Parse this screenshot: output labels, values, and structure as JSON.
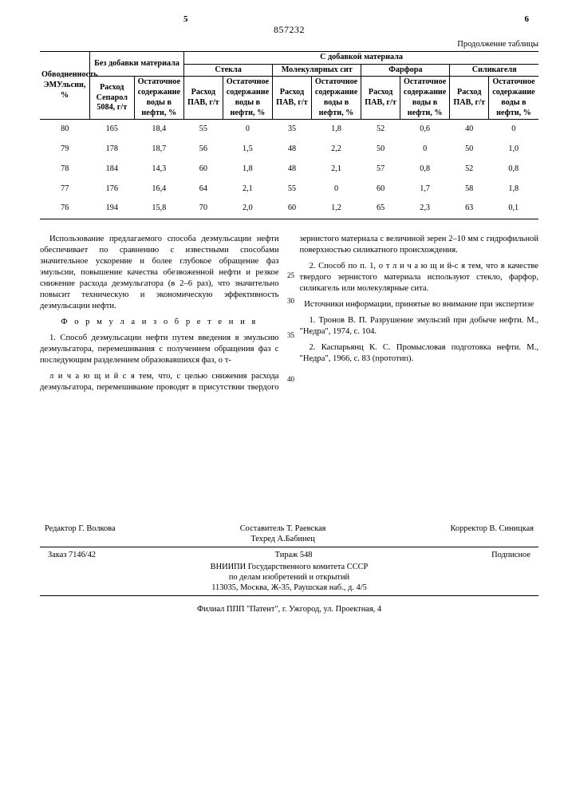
{
  "page": {
    "left_num": "5",
    "right_num": "6",
    "patent_no": "857232",
    "cont_label": "Продолжение таблицы"
  },
  "table": {
    "head": {
      "col_emul": "Обводненность ЭМУльсии, %",
      "col_noadd": "Без добавки материала",
      "col_withadd": "С добавкой материала",
      "sub_rashod_sep": "Расход Сепарол 5084, г/т",
      "sub_ost": "Остаточное содержание воды в нефти, %",
      "mat_glass": "Стекла",
      "mat_sieve": "Молекулярных сит",
      "mat_porcelain": "Фарфора",
      "mat_silica": "Силикагеля",
      "sub_pav": "Расход ПАВ, г/т"
    },
    "rows": [
      {
        "e": "80",
        "s": "165",
        "so": "18,4",
        "g": "55",
        "go": "0",
        "m": "35",
        "mo": "1,8",
        "f": "52",
        "fo": "0,6",
        "si": "40",
        "sio": "0"
      },
      {
        "e": "79",
        "s": "178",
        "so": "18,7",
        "g": "56",
        "go": "1,5",
        "m": "48",
        "mo": "2,2",
        "f": "50",
        "fo": "0",
        "si": "50",
        "sio": "1,0"
      },
      {
        "e": "78",
        "s": "184",
        "so": "14,3",
        "g": "60",
        "go": "1,8",
        "m": "48",
        "mo": "2,1",
        "f": "57",
        "fo": "0,8",
        "si": "52",
        "sio": "0,8"
      },
      {
        "e": "77",
        "s": "176",
        "so": "16,4",
        "g": "64",
        "go": "2,1",
        "m": "55",
        "mo": "0",
        "f": "60",
        "fo": "1,7",
        "si": "58",
        "sio": "1,8"
      },
      {
        "e": "76",
        "s": "194",
        "so": "15,8",
        "g": "70",
        "go": "2,0",
        "m": "60",
        "mo": "1,2",
        "f": "65",
        "fo": "2,3",
        "si": "63",
        "sio": "0,1"
      }
    ]
  },
  "text": {
    "p1": "Использование предлагаемого способа деэмульсации нефти обеспечивает по сравнению с известными способами значительное ускорение и более глубокое обращение фаз эмульсии, повышение качества обезвоженной нефти и резкое снижение расхода деэмульгатора (в 2–6 раз), что значительно повысит техническую и экономическую эффективность деэмульсации нефти.",
    "formula_title": "Ф о р м у л а  и з о б р е т е н и я",
    "p2": "1. Способ деэмульсации нефти путем введения в эмульсию деэмульгатора, перемешивания с получением обращения фаз с последующим разделением образовавшихся фаз, о т-",
    "p3": "л и ч а ю щ и й с я  тем, что, с целью снижения расхода деэмульгатора, перемешивание проводят в присутствии твердого зернистого материала с величиной зерен 2–10 мм с гидрофильной поверхностью силикатного происхождения.",
    "p4": "2. Способ по п. 1, о т л и ч а ю щ и й-с я  тем, что в качестве твердого зернистого материала используют стекло, фарфор, силикагель или молекулярные сита.",
    "src_title": "Источники информации,\nпринятые во внимание при экспертизе",
    "src1": "1. Тронов В. П. Разрушение эмульсий при добыче нефти. М., \"Недра\", 1974, с. 104.",
    "src2": "2. Каспарьянц К. С. Промысловая подготовка нефти. М., \"Недра\", 1966, с. 83 (прототип)."
  },
  "credits": {
    "editor": "Редактор Г. Волкова",
    "compiler": "Составитель Т. Раевская",
    "techred": "Техред А.Бабинец",
    "corrector": "Корректор В. Синицкая",
    "order": "Заказ 7146/42",
    "tirazh": "Тираж 548",
    "subscr": "Подписное",
    "org1": "ВНИИПИ Государственного комитета СССР",
    "org2": "по делам изобретений и открытий",
    "org3": "113035, Москва, Ж-35, Раушская наб., д. 4/5",
    "branch": "Филиал ППП \"Патент\", г. Ужгород, ул. Проектная, 4"
  },
  "linenums": {
    "l25": "25",
    "l30": "30",
    "l35": "35",
    "l40": "40"
  }
}
